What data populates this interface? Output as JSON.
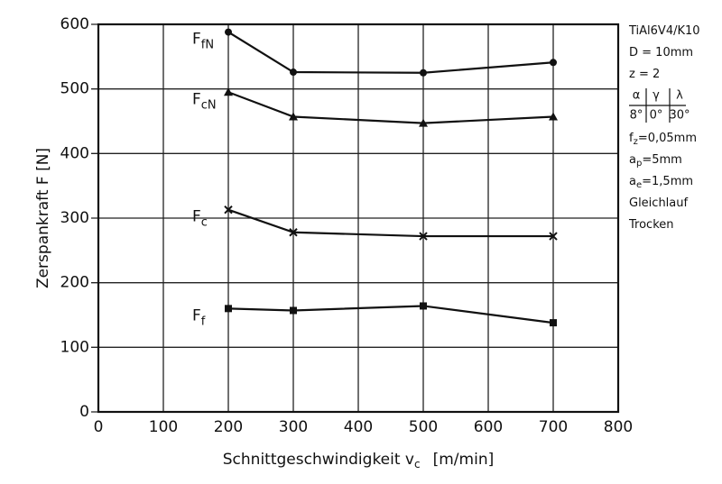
{
  "chart_data": {
    "type": "line",
    "y_label": "Zerspankraft F [N]",
    "x_label": {
      "main": "Schnittgeschwindigkeit  v",
      "sub": "c",
      "rest": "[m/min]"
    },
    "x": [
      200,
      300,
      500,
      700
    ],
    "series": [
      {
        "name": "F",
        "name_sub": "fN",
        "marker": "circle",
        "color": "#111111",
        "values": [
          588,
          526,
          525,
          541
        ]
      },
      {
        "name": "F",
        "name_sub": "cN",
        "marker": "triangle",
        "color": "#111111",
        "values": [
          495,
          457,
          447,
          457
        ]
      },
      {
        "name": "F",
        "name_sub": "c",
        "marker": "cross",
        "color": "#111111",
        "values": [
          313,
          278,
          272,
          272
        ]
      },
      {
        "name": "F",
        "name_sub": "f",
        "marker": "square",
        "color": "#111111",
        "values": [
          160,
          157,
          164,
          138
        ]
      }
    ],
    "xlim": [
      0,
      800
    ],
    "xticks": [
      0,
      100,
      200,
      300,
      400,
      500,
      600,
      700,
      800
    ],
    "ylim": [
      0,
      600
    ],
    "yticks": [
      0,
      100,
      200,
      300,
      400,
      500,
      600
    ],
    "grid": true,
    "notes": [
      {
        "text": "TiAl6V4/K10"
      },
      {
        "text": "D = 10mm"
      },
      {
        "text": "z = 2"
      },
      {
        "angles": [
          [
            "α",
            "8°"
          ],
          [
            "γ",
            "0°"
          ],
          [
            "λ",
            "30°"
          ]
        ]
      },
      {
        "text": "f",
        "sub": "z",
        "rest": "=0,05mm"
      },
      {
        "text": "a",
        "sub": "p",
        "rest": "=5mm"
      },
      {
        "text": "a",
        "sub": "e",
        "rest": "=1,5mm"
      },
      {
        "text": "Gleichlauf"
      },
      {
        "text": "Trocken"
      }
    ]
  }
}
